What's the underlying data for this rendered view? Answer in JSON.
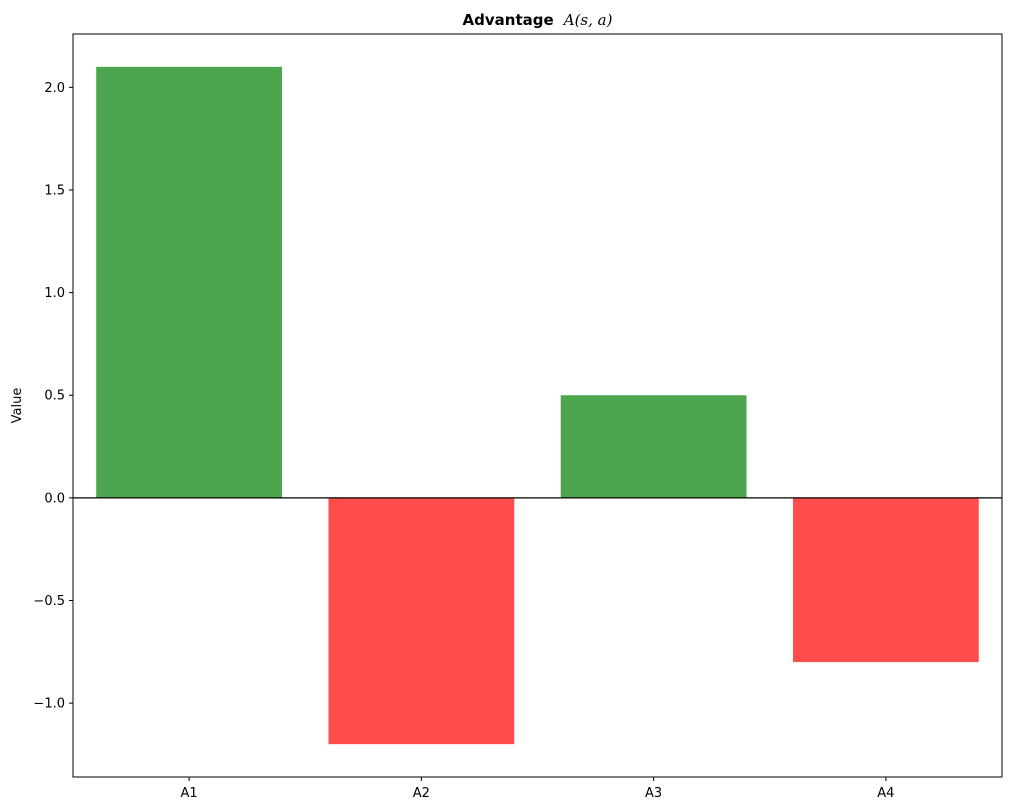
{
  "chart_data": {
    "type": "bar",
    "title_bold": "Advantage",
    "title_math": "A(s, a)",
    "xlabel": "",
    "ylabel": "Value",
    "categories": [
      "A1",
      "A2",
      "A3",
      "A4"
    ],
    "values": [
      2.1,
      -1.2,
      0.5,
      -0.8
    ],
    "ylim": [
      -1.36,
      2.26
    ],
    "yticks": [
      -1.0,
      -0.5,
      0.0,
      0.5,
      1.0,
      1.5,
      2.0
    ],
    "ytick_labels": [
      "−1.0",
      "−0.5",
      "0.0",
      "0.5",
      "1.0",
      "1.5",
      "2.0"
    ],
    "grid": false,
    "zero_line": true,
    "colors": {
      "positive": "#4da64d",
      "negative": "#ff4d4d",
      "zero_line": "#000000"
    }
  }
}
